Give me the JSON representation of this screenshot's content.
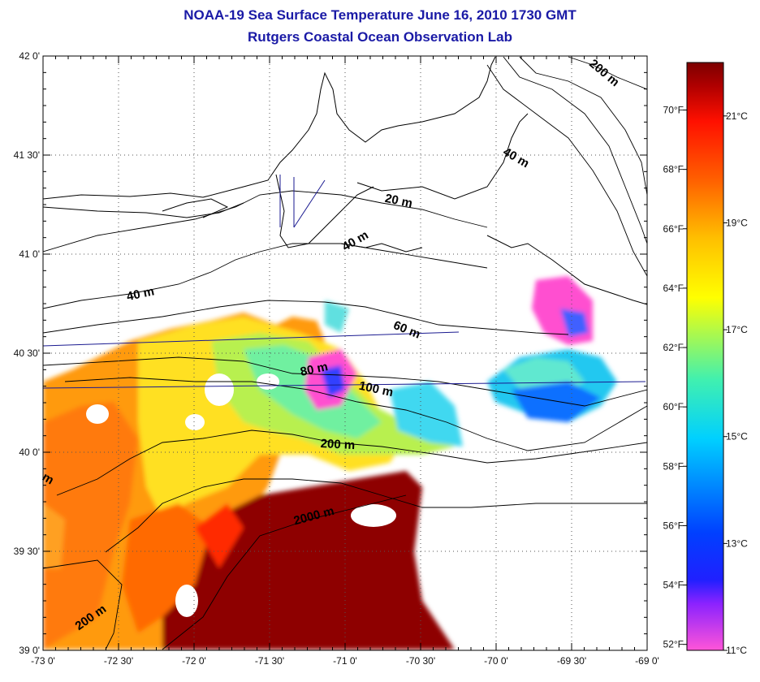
{
  "title": {
    "line1": "NOAA-19 Sea Surface Temperature June 16, 2010 1730 GMT",
    "line2": "Rutgers Coastal Ocean Observation Lab"
  },
  "map": {
    "lon_range": [
      -73.0,
      -69.0
    ],
    "lat_range": [
      39.0,
      42.0
    ],
    "lon_ticks": [
      {
        "v": -73.0,
        "label": "-73 0'"
      },
      {
        "v": -72.5,
        "label": "-72 30'"
      },
      {
        "v": -72.0,
        "label": "-72 0'"
      },
      {
        "v": -71.5,
        "label": "-71 30'"
      },
      {
        "v": -71.0,
        "label": "-71 0'"
      },
      {
        "v": -70.5,
        "label": "-70 30'"
      },
      {
        "v": -70.0,
        "label": "-70 0'"
      },
      {
        "v": -69.5,
        "label": "-69 30'"
      },
      {
        "v": -69.0,
        "label": "-69 0'"
      }
    ],
    "lat_ticks": [
      {
        "v": 42.0,
        "label": "42 0'"
      },
      {
        "v": 41.5,
        "label": "41 30'"
      },
      {
        "v": 41.0,
        "label": "41 0'"
      },
      {
        "v": 40.5,
        "label": "40 30'"
      },
      {
        "v": 40.0,
        "label": "40 0'"
      },
      {
        "v": 39.5,
        "label": "39 30'"
      },
      {
        "v": 39.0,
        "label": "39 0'"
      }
    ],
    "contour_labels": [
      {
        "text": "200 m",
        "lon": -69.3,
        "lat": 41.9,
        "rot": 40
      },
      {
        "text": "40 m",
        "lon": -69.88,
        "lat": 41.47,
        "rot": 30
      },
      {
        "text": "20 m",
        "lon": -70.65,
        "lat": 41.25,
        "rot": 12
      },
      {
        "text": "40 m",
        "lon": -70.92,
        "lat": 41.05,
        "rot": -30
      },
      {
        "text": "40 m",
        "lon": -72.35,
        "lat": 40.78,
        "rot": -12
      },
      {
        "text": "60 m",
        "lon": -70.6,
        "lat": 40.6,
        "rot": 22
      },
      {
        "text": "80 m",
        "lon": -71.2,
        "lat": 40.4,
        "rot": -12
      },
      {
        "text": "100 m",
        "lon": -70.8,
        "lat": 40.3,
        "rot": 12
      },
      {
        "text": "200 m",
        "lon": -71.05,
        "lat": 40.02,
        "rot": 3
      },
      {
        "text": "2000 m",
        "lon": -71.2,
        "lat": 39.66,
        "rot": -15
      },
      {
        "text": "200 m",
        "lon": -72.67,
        "lat": 39.15,
        "rot": -35
      },
      {
        "text": "m",
        "lon": -72.98,
        "lat": 39.85,
        "rot": 30
      }
    ],
    "colors": {
      "coast": "#000000",
      "grid": "#555555",
      "track": "#1a1a90"
    }
  },
  "colorbar": {
    "f_labels": [
      "70°F",
      "68°F",
      "66°F",
      "64°F",
      "62°F",
      "60°F",
      "58°F",
      "56°F",
      "54°F",
      "52°F"
    ],
    "f_values": [
      70,
      68,
      66,
      64,
      62,
      60,
      58,
      56,
      54,
      52
    ],
    "c_labels": [
      "21°C",
      "19°C",
      "17°C",
      "15°C",
      "13°C",
      "11°C"
    ],
    "c_values": [
      21,
      19,
      17,
      15,
      13,
      11
    ],
    "range_c": [
      11,
      22
    ],
    "gradient": [
      "#ff55d8",
      "#6a00ff",
      "#0030ff",
      "#00c8ff",
      "#4cf0a0",
      "#ffff00",
      "#ff8c00",
      "#ff1a00",
      "#9a0000",
      "#7a0000"
    ]
  }
}
